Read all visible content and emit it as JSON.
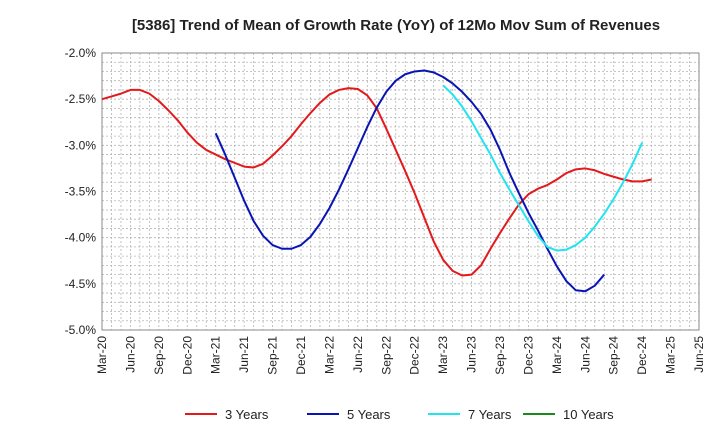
{
  "chart_data": {
    "type": "line",
    "title": "[5386]  Trend of Mean of Growth Rate (YoY) of 12Mo Mov Sum of Revenues",
    "xlabel": "",
    "ylabel": "",
    "ylim": [
      -5.0,
      -2.0
    ],
    "yticks": [
      -2.0,
      -2.5,
      -3.0,
      -3.5,
      -4.0,
      -4.5,
      -5.0
    ],
    "ytick_labels": [
      "-2.0%",
      "-2.5%",
      "-3.0%",
      "-3.5%",
      "-4.0%",
      "-4.5%",
      "-5.0%"
    ],
    "xticks": [
      "Mar-20",
      "Jun-20",
      "Sep-20",
      "Dec-20",
      "Mar-21",
      "Jun-21",
      "Sep-21",
      "Dec-21",
      "Mar-22",
      "Jun-22",
      "Sep-22",
      "Dec-22",
      "Mar-23",
      "Jun-23",
      "Sep-23",
      "Dec-23",
      "Mar-24",
      "Jun-24",
      "Sep-24",
      "Dec-24",
      "Mar-25",
      "Jun-25"
    ],
    "x_start": "Mar-20",
    "grid": true,
    "legend_position": "bottom",
    "series": [
      {
        "name": "3 Years",
        "color": "#e31a1c",
        "start_index": 0,
        "values": [
          -2.5,
          -2.47,
          -2.44,
          -2.4,
          -2.4,
          -2.44,
          -2.52,
          -2.62,
          -2.73,
          -2.86,
          -2.97,
          -3.05,
          -3.1,
          -3.15,
          -3.19,
          -3.23,
          -3.24,
          -3.2,
          -3.11,
          -3.01,
          -2.9,
          -2.77,
          -2.65,
          -2.54,
          -2.45,
          -2.4,
          -2.38,
          -2.39,
          -2.46,
          -2.6,
          -2.82,
          -3.05,
          -3.28,
          -3.52,
          -3.78,
          -4.04,
          -4.24,
          -4.36,
          -4.41,
          -4.4,
          -4.3,
          -4.12,
          -3.95,
          -3.79,
          -3.64,
          -3.53,
          -3.47,
          -3.43,
          -3.37,
          -3.3,
          -3.26,
          -3.25,
          -3.27,
          -3.31,
          -3.34,
          -3.37,
          -3.39,
          -3.39,
          -3.37
        ]
      },
      {
        "name": "5 Years",
        "color": "#0a14b4",
        "start_index": 12,
        "values": [
          -2.87,
          -3.1,
          -3.35,
          -3.6,
          -3.82,
          -3.98,
          -4.08,
          -4.12,
          -4.12,
          -4.08,
          -3.99,
          -3.85,
          -3.68,
          -3.48,
          -3.26,
          -3.03,
          -2.8,
          -2.59,
          -2.42,
          -2.3,
          -2.23,
          -2.2,
          -2.19,
          -2.21,
          -2.26,
          -2.33,
          -2.42,
          -2.53,
          -2.66,
          -2.83,
          -3.05,
          -3.3,
          -3.52,
          -3.73,
          -3.92,
          -4.12,
          -4.31,
          -4.47,
          -4.57,
          -4.58,
          -4.52,
          -4.4
        ]
      },
      {
        "name": "7 Years",
        "color": "#22e4f0",
        "start_index": 36,
        "values": [
          -2.35,
          -2.45,
          -2.58,
          -2.74,
          -2.92,
          -3.1,
          -3.3,
          -3.48,
          -3.65,
          -3.82,
          -3.98,
          -4.1,
          -4.14,
          -4.13,
          -4.08,
          -4.0,
          -3.88,
          -3.74,
          -3.58,
          -3.4,
          -3.2,
          -2.97
        ]
      },
      {
        "name": "10 Years",
        "color": "#1a8a1a",
        "start_index": 0,
        "values": []
      }
    ]
  }
}
